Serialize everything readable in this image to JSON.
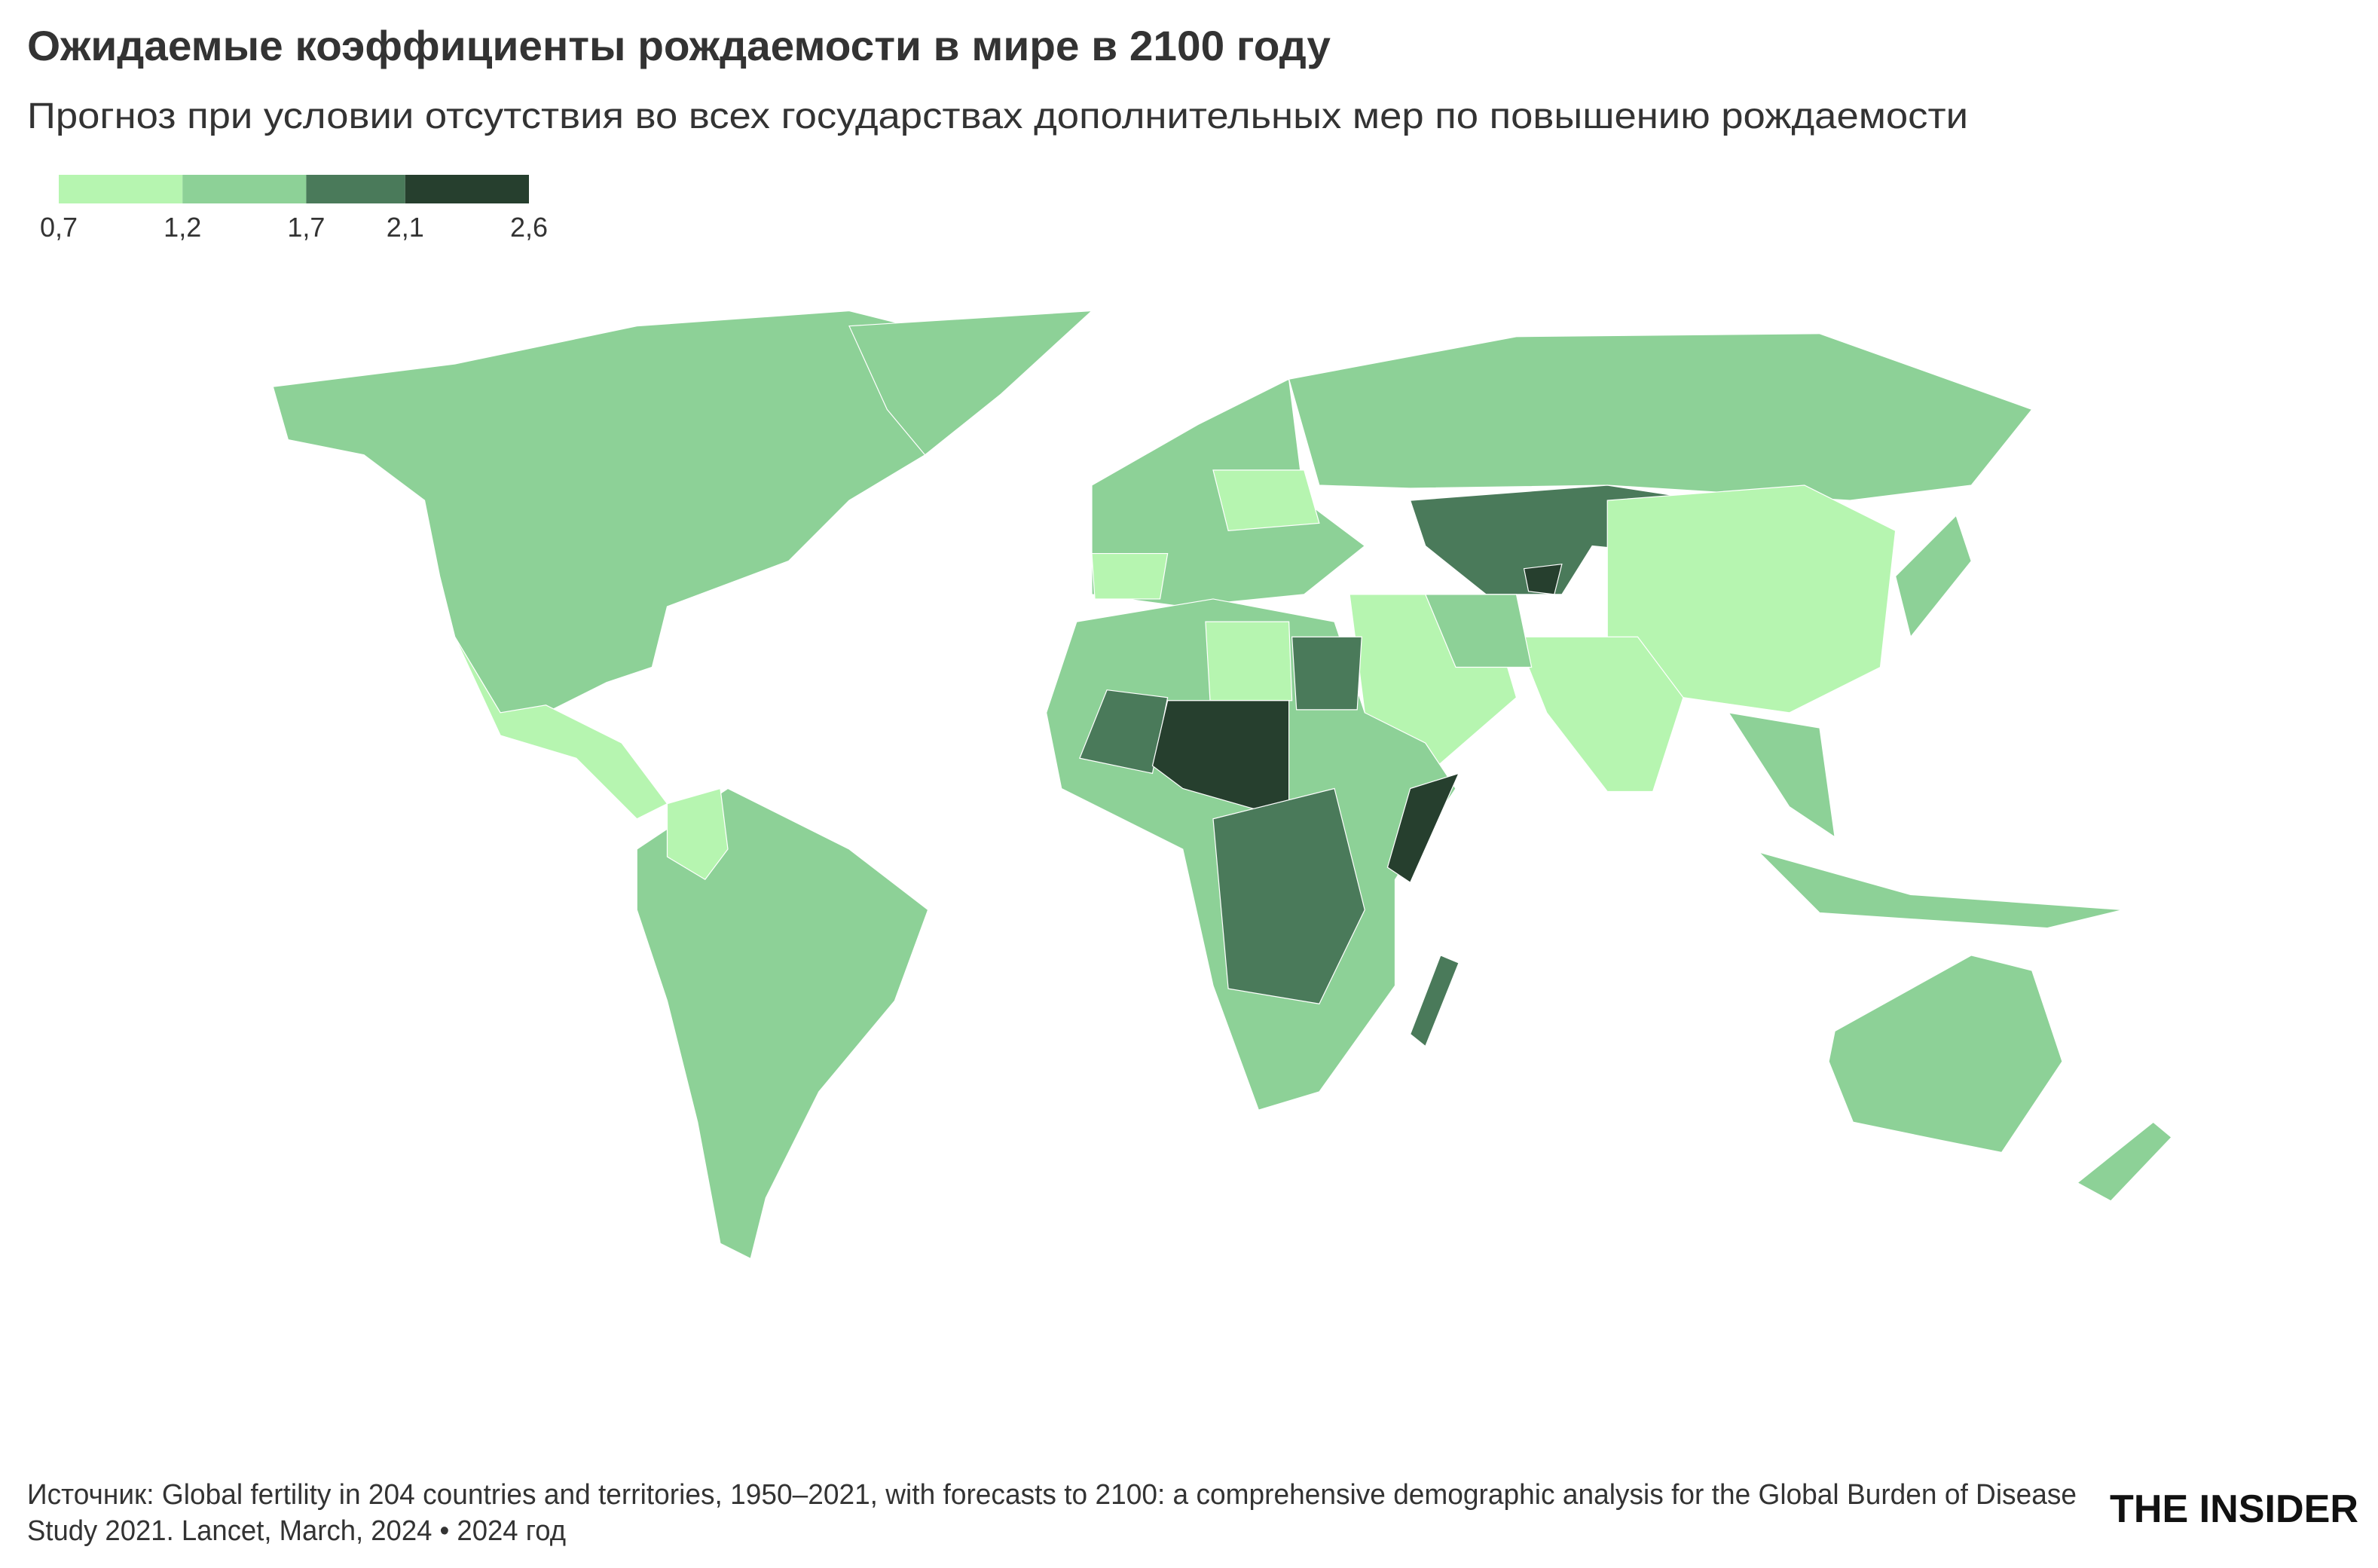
{
  "header": {
    "title": "Ожидаемые коэффициенты рождаемости в мире в 2100 году",
    "subtitle": "Прогноз при условии отсутствия во всех государствах дополнительных мер по повышению рождаемости"
  },
  "legend": {
    "ticks": [
      {
        "value": 0.7,
        "label": "0,7"
      },
      {
        "value": 1.2,
        "label": "1,2"
      },
      {
        "value": 1.7,
        "label": "1,7"
      },
      {
        "value": 2.1,
        "label": "2,1"
      },
      {
        "value": 2.6,
        "label": "2,6"
      }
    ],
    "colors": [
      "#b6f5b0",
      "#8dd197",
      "#4a7a5a",
      "#263f2e"
    ]
  },
  "footer": {
    "source_line1": "Источник: Global fertility in 204 countries and territories, 1950–2021, with forecasts to 2100: a comprehensive demographic analysis for the Global Burden of Disease",
    "source_line2": "Study 2021. Lancet, March, 2024 • 2024 год",
    "logo": "THE INSIDER"
  }
}
